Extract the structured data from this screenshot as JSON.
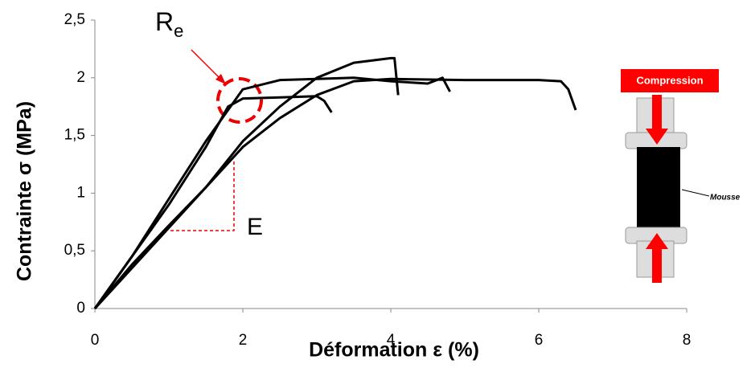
{
  "chart_data": {
    "type": "line",
    "x_label": "Déformation ε (%)",
    "y_label": "Contrainte  σ (MPa)",
    "xlim": [
      0,
      8
    ],
    "xticks": [
      0,
      2,
      4,
      6,
      8
    ],
    "ylim": [
      0,
      2.5
    ],
    "yticks": [
      0,
      {
        "value": 0.5,
        "label": "0,5"
      },
      1,
      {
        "value": 1.5,
        "label": "1,5"
      },
      2,
      {
        "value": 2.5,
        "label": "2,5"
      }
    ],
    "grid": false,
    "series": [
      {
        "color": "#000000",
        "x": [
          0,
          0.5,
          1,
          1.5,
          1.8,
          2,
          2.5,
          3,
          3.1,
          3.2
        ],
        "values": [
          0,
          0.45,
          0.9,
          1.4,
          1.75,
          1.82,
          1.83,
          1.84,
          1.8,
          1.7
        ]
      },
      {
        "color": "#000000",
        "x": [
          0,
          0.5,
          1,
          1.5,
          2,
          2.5,
          3,
          3.5,
          4,
          4.05,
          4.1
        ],
        "values": [
          0,
          0.35,
          0.7,
          1.05,
          1.45,
          1.75,
          2.0,
          2.13,
          2.17,
          2.17,
          1.85
        ]
      },
      {
        "color": "#000000",
        "x": [
          0,
          0.5,
          1,
          1.5,
          2,
          2.5,
          3,
          3.5,
          4,
          4.5,
          4.7,
          4.8
        ],
        "values": [
          0,
          0.45,
          0.95,
          1.45,
          1.9,
          1.98,
          1.99,
          2.0,
          1.97,
          1.95,
          2.0,
          1.88
        ]
      },
      {
        "color": "#000000",
        "x": [
          0,
          0.5,
          1,
          1.5,
          2,
          2.5,
          3,
          3.5,
          4,
          5,
          6,
          6.3,
          6.4,
          6.5
        ],
        "values": [
          0,
          0.38,
          0.72,
          1.05,
          1.4,
          1.65,
          1.85,
          1.97,
          1.99,
          1.98,
          1.98,
          1.97,
          1.9,
          1.72
        ]
      }
    ],
    "annotations": {
      "yield": "R",
      "yield_sub": "e",
      "modulus": "E",
      "compression": "Compression",
      "foam": "Mousse"
    }
  }
}
